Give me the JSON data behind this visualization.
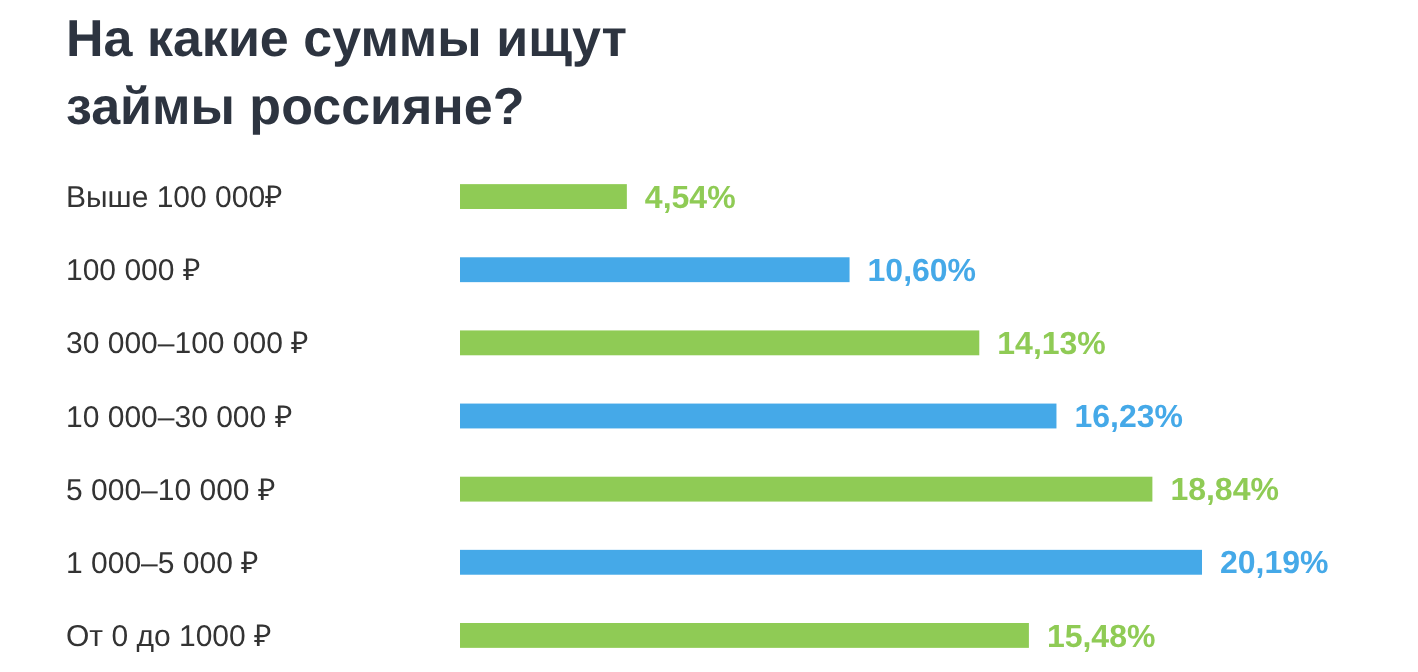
{
  "chart_data": {
    "type": "bar",
    "orientation": "horizontal",
    "title": "На какие суммы ищут займы россияне?",
    "categories": [
      "Выше 100 000₽",
      "100 000 ₽",
      "30 000–100 000 ₽",
      "10 000–30 000 ₽",
      "5 000–10 000 ₽",
      "1 000–5 000 ₽",
      "От 0 до 1000 ₽"
    ],
    "values": [
      4.54,
      10.6,
      14.13,
      16.23,
      18.84,
      20.19,
      15.48
    ],
    "value_labels": [
      "4,54%",
      "10,60%",
      "14,13%",
      "16,23%",
      "18,84%",
      "20,19%",
      "15,48%"
    ],
    "colors": [
      "#8fcb55",
      "#45a9e8",
      "#8fcb55",
      "#45a9e8",
      "#8fcb55",
      "#45a9e8",
      "#8fcb55"
    ]
  }
}
